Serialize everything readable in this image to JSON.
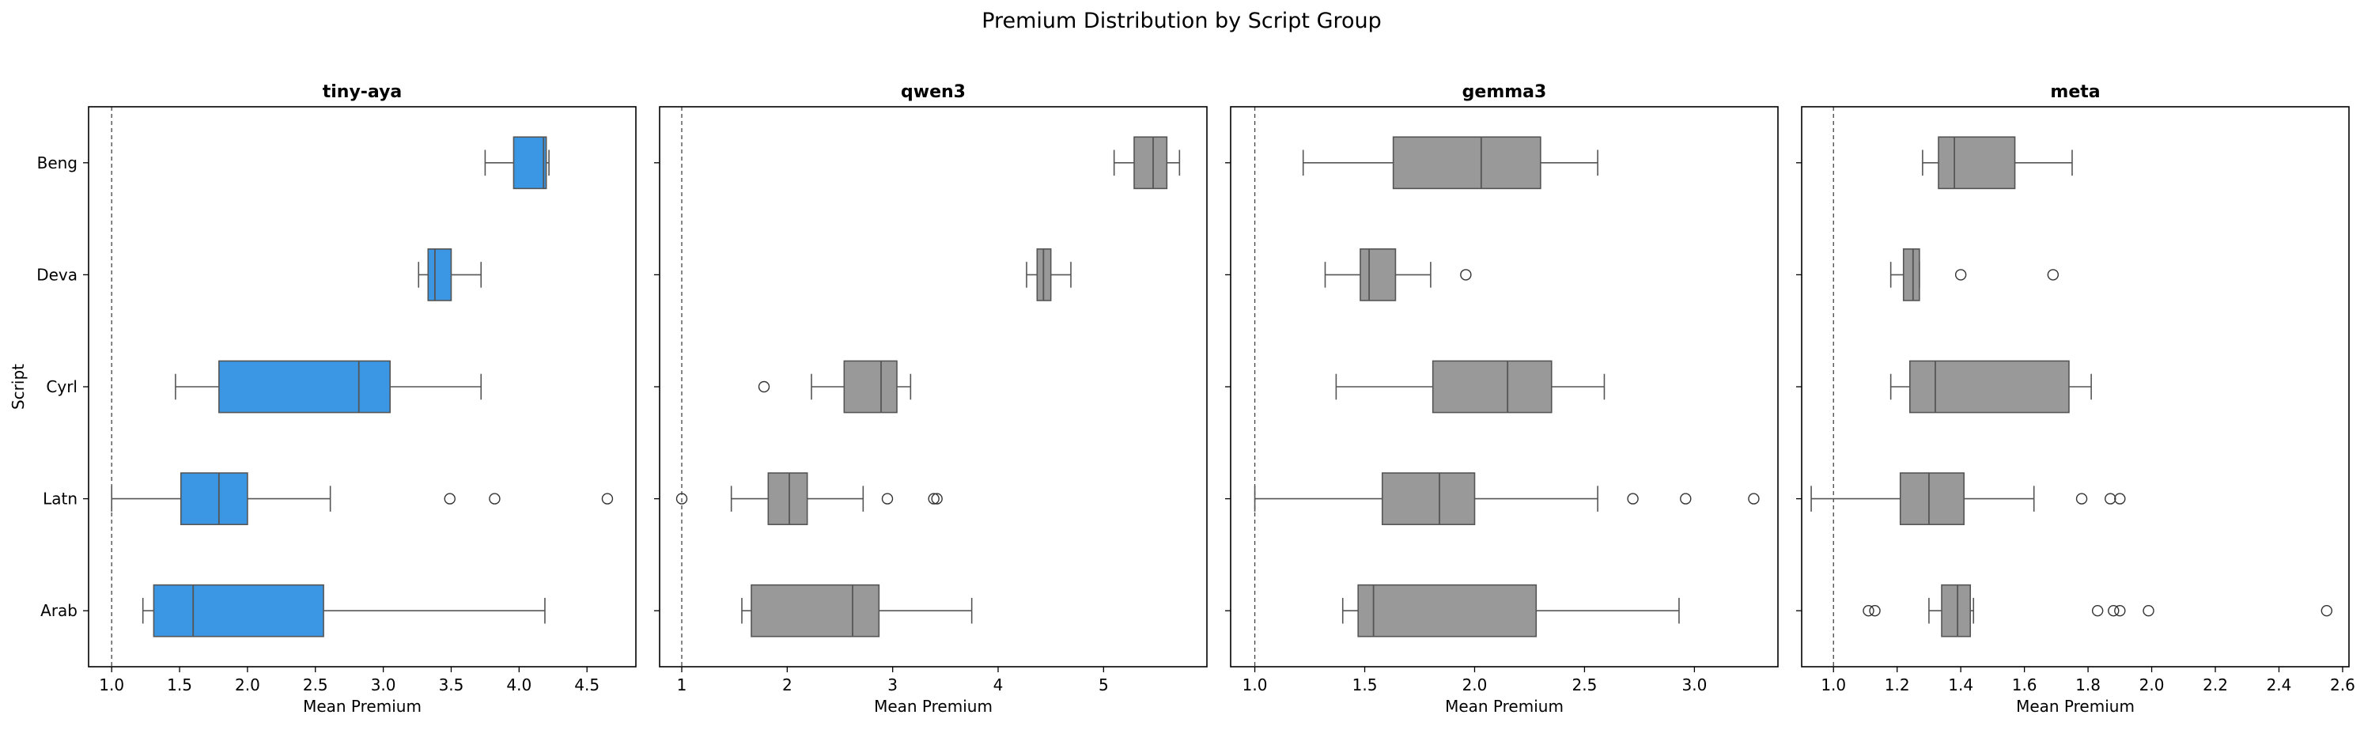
{
  "suptitle": "Premium Distribution by Script Group",
  "colors": {
    "highlight": "#3b97e3",
    "default": "#999999",
    "line": "#555555",
    "refline": "#444444"
  },
  "chart_data": [
    {
      "type": "box",
      "title": "tiny-aya",
      "xlabel": "Mean Premium",
      "ylabel": "Script",
      "color": "#3b97e3",
      "categories": [
        "Beng",
        "Deva",
        "Cyrl",
        "Latn",
        "Arab"
      ],
      "xlim": [
        0.83,
        4.86
      ],
      "ticks": [
        1.0,
        1.5,
        2.0,
        2.5,
        3.0,
        3.5,
        4.0,
        4.5
      ],
      "tick_labels": [
        "1.0",
        "1.5",
        "2.0",
        "2.5",
        "3.0",
        "3.5",
        "4.0",
        "4.5"
      ],
      "reference_line": 1.0,
      "boxes": [
        {
          "cat": "Beng",
          "whislo": 3.75,
          "q1": 3.96,
          "med": 4.18,
          "q3": 4.2,
          "whishi": 4.22,
          "fliers": []
        },
        {
          "cat": "Deva",
          "whislo": 3.26,
          "q1": 3.33,
          "med": 3.38,
          "q3": 3.5,
          "whishi": 3.72,
          "fliers": []
        },
        {
          "cat": "Cyrl",
          "whislo": 1.47,
          "q1": 1.79,
          "med": 2.82,
          "q3": 3.05,
          "whishi": 3.72,
          "fliers": []
        },
        {
          "cat": "Latn",
          "whislo": 1.0,
          "q1": 1.51,
          "med": 1.79,
          "q3": 2.0,
          "whishi": 2.61,
          "fliers": [
            3.49,
            3.82,
            4.65
          ]
        },
        {
          "cat": "Arab",
          "whislo": 1.23,
          "q1": 1.31,
          "med": 1.6,
          "q3": 2.56,
          "whishi": 4.19,
          "fliers": []
        }
      ]
    },
    {
      "type": "box",
      "title": "qwen3",
      "xlabel": "Mean Premium",
      "ylabel": "",
      "color": "#999999",
      "categories": [
        "Beng",
        "Deva",
        "Cyrl",
        "Latn",
        "Arab"
      ],
      "xlim": [
        0.79,
        5.98
      ],
      "ticks": [
        1,
        2,
        3,
        4,
        5
      ],
      "tick_labels": [
        "1",
        "2",
        "3",
        "4",
        "5"
      ],
      "reference_line": 1.0,
      "boxes": [
        {
          "cat": "Beng",
          "whislo": 5.1,
          "q1": 5.29,
          "med": 5.47,
          "q3": 5.6,
          "whishi": 5.72,
          "fliers": []
        },
        {
          "cat": "Deva",
          "whislo": 4.27,
          "q1": 4.37,
          "med": 4.43,
          "q3": 4.5,
          "whishi": 4.69,
          "fliers": []
        },
        {
          "cat": "Cyrl",
          "whislo": 2.23,
          "q1": 2.54,
          "med": 2.89,
          "q3": 3.04,
          "whishi": 3.17,
          "fliers": [
            1.78
          ]
        },
        {
          "cat": "Latn",
          "whislo": 1.47,
          "q1": 1.82,
          "med": 2.02,
          "q3": 2.19,
          "whishi": 2.72,
          "fliers": [
            1.0,
            2.95,
            3.39,
            3.42
          ]
        },
        {
          "cat": "Arab",
          "whislo": 1.57,
          "q1": 1.66,
          "med": 2.62,
          "q3": 2.87,
          "whishi": 3.75,
          "fliers": []
        }
      ]
    },
    {
      "type": "box",
      "title": "gemma3",
      "xlabel": "Mean Premium",
      "ylabel": "",
      "color": "#999999",
      "categories": [
        "Beng",
        "Deva",
        "Cyrl",
        "Latn",
        "Arab"
      ],
      "xlim": [
        0.89,
        3.38
      ],
      "ticks": [
        1.0,
        1.5,
        2.0,
        2.5,
        3.0
      ],
      "tick_labels": [
        "1.0",
        "1.5",
        "2.0",
        "2.5",
        "3.0"
      ],
      "reference_line": 1.0,
      "boxes": [
        {
          "cat": "Beng",
          "whislo": 1.22,
          "q1": 1.63,
          "med": 2.03,
          "q3": 2.3,
          "whishi": 2.56,
          "fliers": []
        },
        {
          "cat": "Deva",
          "whislo": 1.32,
          "q1": 1.48,
          "med": 1.52,
          "q3": 1.64,
          "whishi": 1.8,
          "fliers": [
            1.96
          ]
        },
        {
          "cat": "Cyrl",
          "whislo": 1.37,
          "q1": 1.81,
          "med": 2.15,
          "q3": 2.35,
          "whishi": 2.59,
          "fliers": []
        },
        {
          "cat": "Latn",
          "whislo": 1.0,
          "q1": 1.58,
          "med": 1.84,
          "q3": 2.0,
          "whishi": 2.56,
          "fliers": [
            2.72,
            2.96,
            3.27
          ]
        },
        {
          "cat": "Arab",
          "whislo": 1.4,
          "q1": 1.47,
          "med": 1.54,
          "q3": 2.28,
          "whishi": 2.93,
          "fliers": []
        }
      ]
    },
    {
      "type": "box",
      "title": "meta",
      "xlabel": "Mean Premium",
      "ylabel": "",
      "color": "#999999",
      "categories": [
        "Beng",
        "Deva",
        "Cyrl",
        "Latn",
        "Arab"
      ],
      "xlim": [
        0.9,
        2.62
      ],
      "ticks": [
        1.0,
        1.2,
        1.4,
        1.6,
        1.8,
        2.0,
        2.2,
        2.4,
        2.6
      ],
      "tick_labels": [
        "1.0",
        "1.2",
        "1.4",
        "1.6",
        "1.8",
        "2.0",
        "2.2",
        "2.4",
        "2.6"
      ],
      "reference_line": 1.0,
      "boxes": [
        {
          "cat": "Beng",
          "whislo": 1.28,
          "q1": 1.33,
          "med": 1.38,
          "q3": 1.57,
          "whishi": 1.75,
          "fliers": []
        },
        {
          "cat": "Deva",
          "whislo": 1.18,
          "q1": 1.22,
          "med": 1.25,
          "q3": 1.27,
          "whishi": 1.27,
          "fliers": [
            1.4,
            1.69
          ]
        },
        {
          "cat": "Cyrl",
          "whislo": 1.18,
          "q1": 1.24,
          "med": 1.32,
          "q3": 1.74,
          "whishi": 1.81,
          "fliers": []
        },
        {
          "cat": "Latn",
          "whislo": 0.93,
          "q1": 1.21,
          "med": 1.3,
          "q3": 1.41,
          "whishi": 1.63,
          "fliers": [
            1.78,
            1.87,
            1.9
          ]
        },
        {
          "cat": "Arab",
          "whislo": 1.3,
          "q1": 1.34,
          "med": 1.39,
          "q3": 1.43,
          "whishi": 1.44,
          "fliers": [
            1.11,
            1.13,
            1.83,
            1.88,
            1.9,
            1.99,
            2.55
          ]
        }
      ]
    }
  ]
}
